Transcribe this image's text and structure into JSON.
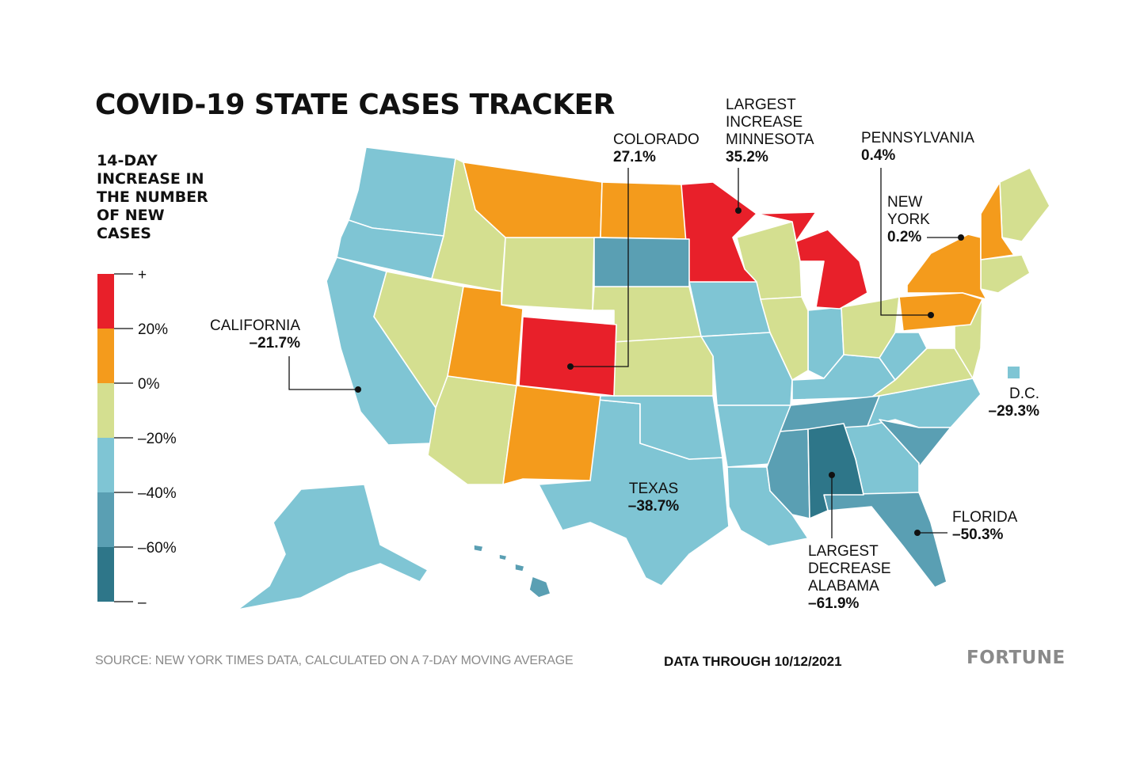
{
  "title": "COVID-19 STATE CASES TRACKER",
  "legend": {
    "title_lines": [
      "14-DAY",
      "INCREASE IN",
      "THE NUMBER",
      "OF NEW",
      "CASES"
    ],
    "ticks": [
      "+",
      "20%",
      "0%",
      "–20%",
      "–40%",
      "–60%",
      "–"
    ],
    "bins": [
      {
        "range": "above 20%",
        "color": "#e8202a"
      },
      {
        "range": "0% to 20%",
        "color": "#f49b1c"
      },
      {
        "range": "–20% to 0%",
        "color": "#d4df90"
      },
      {
        "range": "–40% to –20%",
        "color": "#7fc5d4"
      },
      {
        "range": "–60% to –40%",
        "color": "#5a9fb3"
      },
      {
        "range": "below –60%",
        "color": "#2e7689"
      }
    ]
  },
  "annotations": {
    "colorado": {
      "name": "COLORADO",
      "value": "27.1%"
    },
    "minnesota": {
      "label1": "LARGEST",
      "label2": "INCREASE",
      "name": "MINNESOTA",
      "value": "35.2%"
    },
    "pennsylvania": {
      "name": "PENNSYLVANIA",
      "value": "0.4%"
    },
    "new_york": {
      "name1": "NEW",
      "name2": "YORK",
      "value": "0.2%"
    },
    "california": {
      "name": "CALIFORNIA",
      "value": "–21.7%"
    },
    "dc": {
      "name": "D.C.",
      "value": "–29.3%"
    },
    "texas": {
      "name": "TEXAS",
      "value": "–38.7%"
    },
    "florida": {
      "name": "FLORIDA",
      "value": "–50.3%"
    },
    "alabama": {
      "label1": "LARGEST",
      "label2": "DECREASE",
      "name": "ALABAMA",
      "value": "–61.9%"
    }
  },
  "footer": {
    "source": "SOURCE: NEW YORK TIMES DATA, CALCULATED ON A 7-DAY MOVING AVERAGE",
    "data_through": "DATA THROUGH 10/12/2021",
    "brand": "FORTUNE"
  }
}
